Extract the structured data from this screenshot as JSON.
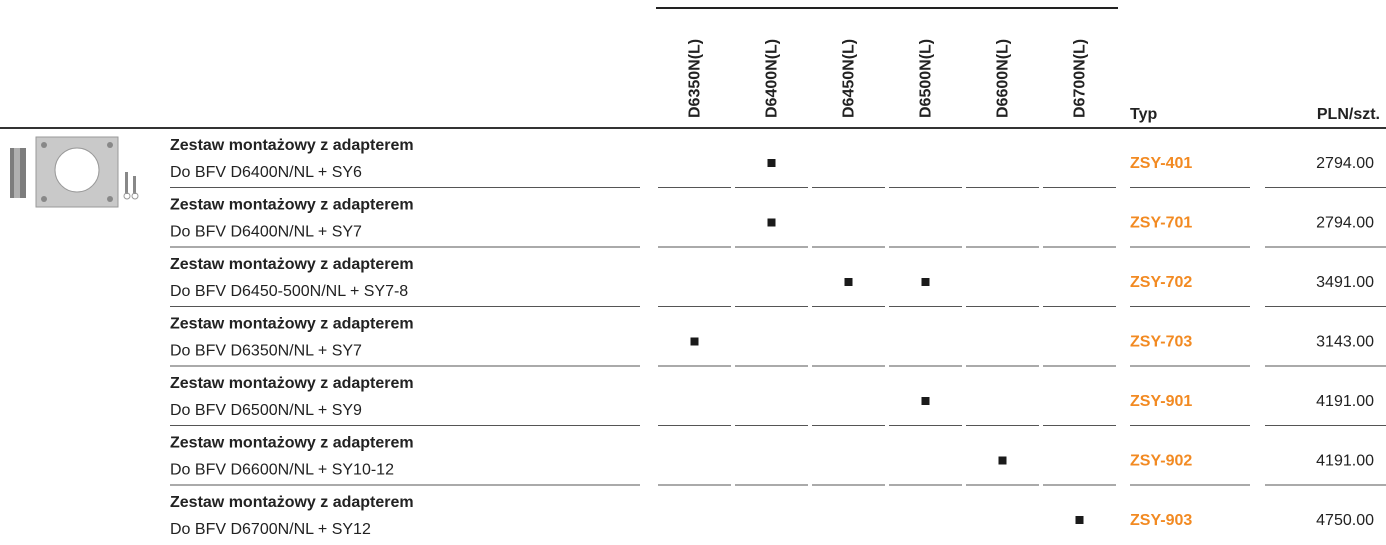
{
  "table": {
    "columns": [
      "D6350N(L)",
      "D6400N(L)",
      "D6450N(L)",
      "D6500N(L)",
      "D6600N(L)",
      "D6700N(L)"
    ],
    "type_header": "Typ",
    "price_header": "PLN/szt.",
    "mark_color": "#1a1a1a",
    "code_color": "#f28a22",
    "rows": [
      {
        "title": "Zestaw montażowy z adapterem",
        "subtitle": "Do BFV D6400N/NL + SY6",
        "marks": [
          false,
          true,
          false,
          false,
          false,
          false
        ],
        "code": "ZSY-401",
        "price": "2794.00"
      },
      {
        "title": "Zestaw montażowy z adapterem",
        "subtitle": "Do BFV D6400N/NL + SY7",
        "marks": [
          false,
          true,
          false,
          false,
          false,
          false
        ],
        "code": "ZSY-701",
        "price": "2794.00"
      },
      {
        "title": "Zestaw montażowy z adapterem",
        "subtitle": "Do BFV D6450-500N/NL + SY7-8",
        "marks": [
          false,
          false,
          true,
          true,
          false,
          false
        ],
        "code": "ZSY-702",
        "price": "3491.00"
      },
      {
        "title": "Zestaw montażowy z adapterem",
        "subtitle": "Do BFV D6350N/NL + SY7",
        "marks": [
          true,
          false,
          false,
          false,
          false,
          false
        ],
        "code": "ZSY-703",
        "price": "3143.00"
      },
      {
        "title": "Zestaw montażowy z adapterem",
        "subtitle": "Do BFV D6500N/NL + SY9",
        "marks": [
          false,
          false,
          false,
          true,
          false,
          false
        ],
        "code": "ZSY-901",
        "price": "4191.00"
      },
      {
        "title": "Zestaw montażowy z adapterem",
        "subtitle": "Do BFV D6600N/NL + SY10-12",
        "marks": [
          false,
          false,
          false,
          false,
          true,
          false
        ],
        "code": "ZSY-902",
        "price": "4191.00"
      },
      {
        "title": "Zestaw montażowy z adapterem",
        "subtitle": "Do BFV D6700N/NL + SY12",
        "marks": [
          false,
          false,
          false,
          false,
          false,
          true
        ],
        "code": "ZSY-903",
        "price": "4750.00"
      }
    ]
  }
}
